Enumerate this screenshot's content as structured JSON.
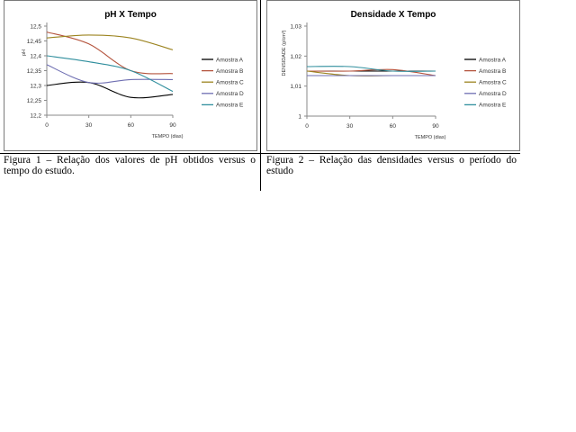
{
  "colors": {
    "series": [
      "#000000",
      "#b4533c",
      "#9c8420",
      "#6f6fb2",
      "#2f8e9d"
    ],
    "axis": "#8a8a8a",
    "frame": "#7a7a7a"
  },
  "chart_data": [
    {
      "type": "line",
      "title": "pH X Tempo",
      "xlabel": "TEMPO (dias)",
      "ylabel": "pH",
      "x": [
        0,
        30,
        60,
        90
      ],
      "xlim": [
        0,
        90
      ],
      "ylim": [
        12.2,
        12.5
      ],
      "y_ticks": [
        "12,2",
        "12,25",
        "12,3",
        "12,35",
        "12,4",
        "12,45",
        "12,5"
      ],
      "x_ticks": [
        "0",
        "30",
        "60",
        "90"
      ],
      "smooth": true,
      "grid": false,
      "legend": "right",
      "series": [
        {
          "name": "Amostra A",
          "values": [
            12.3,
            12.31,
            12.26,
            12.27
          ]
        },
        {
          "name": "Amostra B",
          "values": [
            12.48,
            12.44,
            12.35,
            12.34
          ]
        },
        {
          "name": "Amostra C",
          "values": [
            12.46,
            12.47,
            12.46,
            12.42
          ]
        },
        {
          "name": "Amostra D",
          "values": [
            12.37,
            12.31,
            12.32,
            12.32
          ]
        },
        {
          "name": "Amostra E",
          "values": [
            12.4,
            12.38,
            12.35,
            12.28
          ]
        }
      ]
    },
    {
      "type": "line",
      "title": "Densidade X Tempo",
      "xlabel": "TEMPO (dias)",
      "ylabel": "DENSIDADE (g/cm³)",
      "x": [
        0,
        30,
        60,
        90
      ],
      "xlim": [
        0,
        90
      ],
      "ylim": [
        1,
        1.03
      ],
      "y_ticks": [
        "1",
        "1,01",
        "1,02",
        "1,03"
      ],
      "x_ticks": [
        "0",
        "30",
        "60",
        "90"
      ],
      "smooth": true,
      "grid": false,
      "legend": "right",
      "series": [
        {
          "name": "Amostra A",
          "values": [
            1.015,
            1.015,
            1.015,
            1.015
          ]
        },
        {
          "name": "Amostra B",
          "values": [
            1.015,
            1.015,
            1.0155,
            1.0135
          ]
        },
        {
          "name": "Amostra C",
          "values": [
            1.015,
            1.0135,
            1.0135,
            1.0135
          ]
        },
        {
          "name": "Amostra D",
          "values": [
            1.0135,
            1.0135,
            1.0135,
            1.0135
          ]
        },
        {
          "name": "Amostra E",
          "values": [
            1.0165,
            1.0165,
            1.015,
            1.015
          ]
        }
      ]
    }
  ],
  "captions": [
    "Figura 1 – Relação dos valores de pH obtidos versus o tempo do estudo.",
    "Figura 2 – Relação das densidades versus o período do estudo"
  ]
}
